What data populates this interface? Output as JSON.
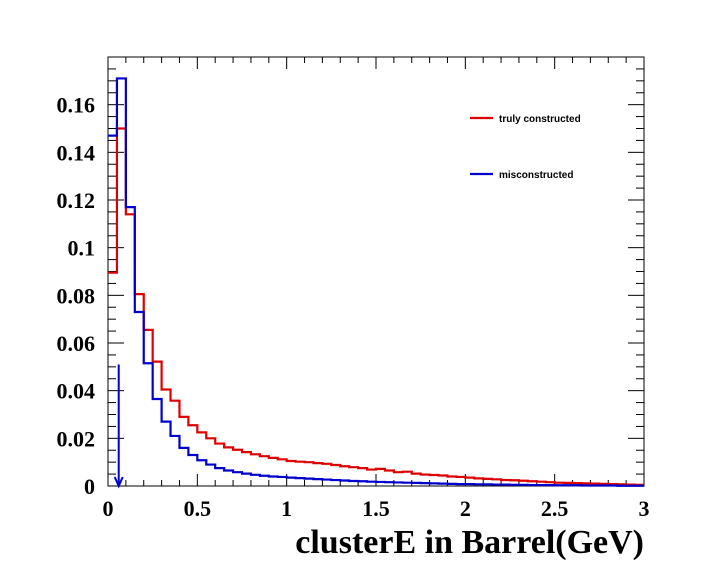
{
  "chart_data": {
    "type": "line",
    "style": "step-histogram",
    "xlabel": "clusterE in Barrel(GeV)",
    "ylabel": "",
    "xlim": [
      0,
      3
    ],
    "ylim": [
      0,
      0.18
    ],
    "grid": false,
    "legend_position": "top-right",
    "bin_width": 0.05,
    "x_ticks": [
      "0",
      "0.5",
      "1",
      "1.5",
      "2",
      "2.5",
      "3"
    ],
    "y_ticks": [
      "0",
      "0.02",
      "0.04",
      "0.06",
      "0.08",
      "0.1",
      "0.12",
      "0.14",
      "0.16"
    ],
    "series": [
      {
        "name": "truly constructed",
        "color": "#dd0000",
        "values": [
          0.0895,
          0.15,
          0.114,
          0.0805,
          0.0655,
          0.0522,
          0.0405,
          0.0358,
          0.029,
          0.0255,
          0.0225,
          0.02,
          0.0178,
          0.0162,
          0.0152,
          0.0142,
          0.0133,
          0.0125,
          0.0118,
          0.0112,
          0.0105,
          0.0102,
          0.01,
          0.0096,
          0.0093,
          0.0088,
          0.0083,
          0.0079,
          0.0075,
          0.0069,
          0.0072,
          0.0065,
          0.0058,
          0.006,
          0.0052,
          0.0048,
          0.0046,
          0.0044,
          0.004,
          0.0038,
          0.0035,
          0.0032,
          0.003,
          0.0028,
          0.0025,
          0.0024,
          0.0022,
          0.002,
          0.0018,
          0.0016,
          0.0014,
          0.0013,
          0.0012,
          0.0011,
          0.001,
          0.0009,
          0.0008,
          0.0007,
          0.0006,
          0.0005
        ]
      },
      {
        "name": "misconstructed",
        "color": "#0000cc",
        "values": [
          0.147,
          0.171,
          0.117,
          0.073,
          0.0515,
          0.0365,
          0.027,
          0.021,
          0.016,
          0.013,
          0.0108,
          0.009,
          0.0075,
          0.0065,
          0.0058,
          0.0052,
          0.0047,
          0.0043,
          0.004,
          0.0038,
          0.0035,
          0.0033,
          0.0031,
          0.0029,
          0.0027,
          0.0025,
          0.0023,
          0.0021,
          0.002,
          0.0018,
          0.0017,
          0.0016,
          0.0015,
          0.0014,
          0.0013,
          0.0012,
          0.0011,
          0.001,
          0.0009,
          0.0008,
          0.0008,
          0.0007,
          0.0007,
          0.0006,
          0.0006,
          0.0005,
          0.0005,
          0.0004,
          0.0004,
          0.0004,
          0.0003,
          0.0003,
          0.0003,
          0.0002,
          0.0002,
          0.0002,
          0.0002,
          0.0001,
          0.0001,
          0.0001
        ]
      }
    ],
    "annotations": [
      {
        "type": "arrow",
        "color": "#0000cc",
        "x": 0.06,
        "y_from": 0.051,
        "y_to": 0
      }
    ]
  }
}
